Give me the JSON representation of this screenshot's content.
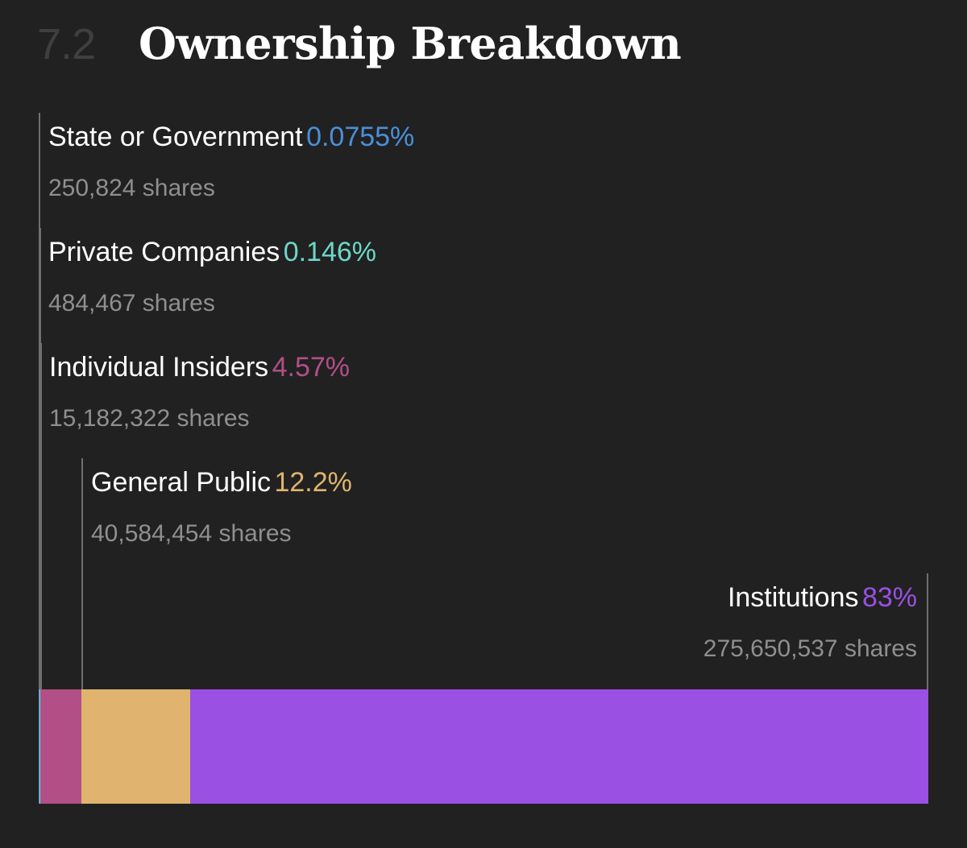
{
  "header": {
    "section_number": "7.2",
    "title": "Ownership Breakdown"
  },
  "chart_data": {
    "type": "bar",
    "stacked": true,
    "orientation": "horizontal",
    "unit": "%",
    "categories": [
      "State or Government",
      "Private Companies",
      "Individual Insiders",
      "General Public",
      "Institutions"
    ],
    "values": [
      0.0755,
      0.146,
      4.57,
      12.2,
      83
    ],
    "series": [
      {
        "name": "State or Government",
        "pct_label": "0.0755%",
        "value": 0.0755,
        "shares": "250,824 shares",
        "color": "#4a90d9"
      },
      {
        "name": "Private Companies",
        "pct_label": "0.146%",
        "value": 0.146,
        "shares": "484,467 shares",
        "color": "#6fd6c8"
      },
      {
        "name": "Individual Insiders",
        "pct_label": "4.57%",
        "value": 4.57,
        "shares": "15,182,322 shares",
        "color": "#b24f86"
      },
      {
        "name": "General Public",
        "pct_label": "12.2%",
        "value": 12.2,
        "shares": "40,584,454 shares",
        "color": "#e0b46e"
      },
      {
        "name": "Institutions",
        "pct_label": "83%",
        "value": 83,
        "shares": "275,650,537 shares",
        "color": "#9a50e2"
      }
    ]
  }
}
